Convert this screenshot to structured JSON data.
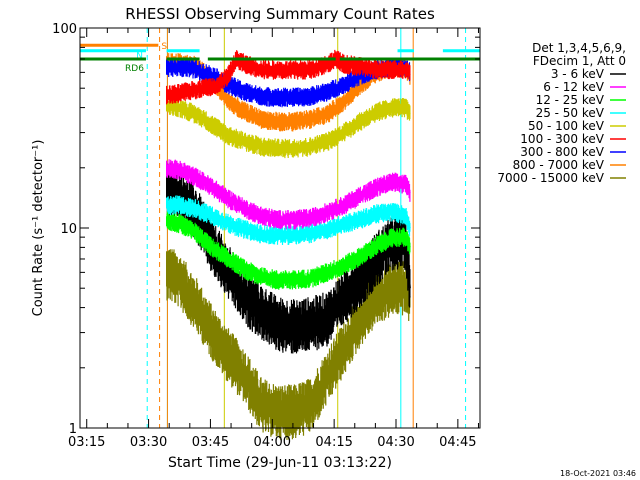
{
  "chart_data": {
    "type": "line",
    "title": "RHESSI Observing Summary Count Rates",
    "xlabel": "Start Time (29-Jun-11 03:13:22)",
    "ylabel": "Count Rate (s⁻¹ detector⁻¹)",
    "yscale": "log",
    "ylim": [
      1,
      100
    ],
    "xlim_minutes": [
      0,
      97
    ],
    "x_tick_labels": [
      "03:15",
      "03:30",
      "03:45",
      "04:00",
      "04:15",
      "04:30",
      "04:45"
    ],
    "x_tick_minutes": [
      1.63,
      16.63,
      31.63,
      46.63,
      61.63,
      76.63,
      91.63
    ],
    "y_tick_labels": [
      "1",
      "10",
      "100"
    ],
    "y_tick_values": [
      1,
      10,
      100
    ],
    "legend_header": [
      "Det 1,3,4,5,6,9,",
      "FDecim 1, Att 0"
    ],
    "legend_placement": "right",
    "series": [
      {
        "name": "3 - 6 keV",
        "color": "#000000",
        "points": [
          [
            21,
            16
          ],
          [
            24,
            15
          ],
          [
            28,
            12
          ],
          [
            32,
            8
          ],
          [
            36,
            6
          ],
          [
            40,
            4.5
          ],
          [
            44,
            3.8
          ],
          [
            48,
            3.3
          ],
          [
            52,
            3.2
          ],
          [
            56,
            3.3
          ],
          [
            60,
            3.5
          ],
          [
            64,
            4.5
          ],
          [
            68,
            5.5
          ],
          [
            72,
            7
          ],
          [
            76,
            8.5
          ],
          [
            79,
            8.5
          ],
          [
            80,
            5
          ]
        ]
      },
      {
        "name": "6 - 12 keV",
        "color": "#ff00ff",
        "points": [
          [
            21,
            20
          ],
          [
            24,
            19.5
          ],
          [
            28,
            18
          ],
          [
            32,
            16
          ],
          [
            36,
            14
          ],
          [
            40,
            12.5
          ],
          [
            44,
            11.5
          ],
          [
            48,
            11
          ],
          [
            52,
            11
          ],
          [
            56,
            11.2
          ],
          [
            60,
            12
          ],
          [
            64,
            13
          ],
          [
            68,
            14.5
          ],
          [
            72,
            16
          ],
          [
            76,
            17
          ],
          [
            79,
            16.5
          ],
          [
            80,
            15
          ]
        ]
      },
      {
        "name": "12 - 25 keV",
        "color": "#00ff00",
        "points": [
          [
            21,
            11
          ],
          [
            24,
            10.5
          ],
          [
            28,
            9.5
          ],
          [
            32,
            8
          ],
          [
            36,
            7
          ],
          [
            40,
            6.2
          ],
          [
            44,
            5.7
          ],
          [
            48,
            5.5
          ],
          [
            52,
            5.5
          ],
          [
            56,
            5.6
          ],
          [
            60,
            6
          ],
          [
            64,
            6.5
          ],
          [
            68,
            7.2
          ],
          [
            72,
            8.2
          ],
          [
            76,
            9
          ],
          [
            79,
            9
          ],
          [
            80,
            8
          ]
        ]
      },
      {
        "name": "25 - 50 keV",
        "color": "#00ffff",
        "points": [
          [
            21,
            13
          ],
          [
            24,
            13
          ],
          [
            28,
            12.5
          ],
          [
            32,
            11.5
          ],
          [
            36,
            10.5
          ],
          [
            40,
            9.8
          ],
          [
            44,
            9.3
          ],
          [
            48,
            9.2
          ],
          [
            52,
            9.2
          ],
          [
            56,
            9.4
          ],
          [
            60,
            9.8
          ],
          [
            64,
            10.5
          ],
          [
            68,
            11
          ],
          [
            72,
            11.8
          ],
          [
            76,
            12
          ],
          [
            79,
            11.5
          ],
          [
            80,
            10
          ]
        ]
      },
      {
        "name": "50 - 100 keV",
        "color": "#cccc00",
        "points": [
          [
            21,
            41
          ],
          [
            24,
            40
          ],
          [
            28,
            37
          ],
          [
            32,
            33
          ],
          [
            36,
            29
          ],
          [
            40,
            27
          ],
          [
            44,
            25.5
          ],
          [
            48,
            25
          ],
          [
            52,
            25
          ],
          [
            56,
            25.5
          ],
          [
            60,
            27
          ],
          [
            64,
            30
          ],
          [
            68,
            34
          ],
          [
            72,
            38
          ],
          [
            76,
            40
          ],
          [
            79,
            40
          ],
          [
            80,
            37
          ]
        ]
      },
      {
        "name": "100 - 300 keV",
        "color": "#ff0000",
        "points": [
          [
            21,
            46
          ],
          [
            24,
            47
          ],
          [
            28,
            49
          ],
          [
            32,
            51
          ],
          [
            34,
            53
          ],
          [
            36,
            58
          ],
          [
            38,
            70
          ],
          [
            40,
            66
          ],
          [
            44,
            62
          ],
          [
            48,
            61.5
          ],
          [
            52,
            61.5
          ],
          [
            56,
            62
          ],
          [
            60,
            66
          ],
          [
            62,
            70
          ],
          [
            64,
            66
          ],
          [
            68,
            64
          ],
          [
            72,
            62
          ],
          [
            76,
            62
          ],
          [
            79,
            62
          ],
          [
            80,
            60
          ]
        ]
      },
      {
        "name": "300 - 800 keV",
        "color": "#0000ff",
        "points": [
          [
            21,
            63
          ],
          [
            24,
            64
          ],
          [
            28,
            62
          ],
          [
            32,
            58
          ],
          [
            36,
            52
          ],
          [
            40,
            48
          ],
          [
            44,
            45.5
          ],
          [
            48,
            45
          ],
          [
            52,
            45
          ],
          [
            56,
            45.5
          ],
          [
            60,
            48
          ],
          [
            64,
            52
          ],
          [
            68,
            58
          ],
          [
            72,
            62
          ],
          [
            76,
            64
          ],
          [
            79,
            63
          ],
          [
            80,
            60
          ]
        ]
      },
      {
        "name": "800 - 7000 keV",
        "color": "#ff8000",
        "points": [
          [
            21,
            67
          ],
          [
            24,
            67
          ],
          [
            28,
            65
          ],
          [
            32,
            55
          ],
          [
            36,
            43
          ],
          [
            40,
            38
          ],
          [
            44,
            35
          ],
          [
            48,
            34
          ],
          [
            52,
            34
          ],
          [
            56,
            35
          ],
          [
            60,
            37
          ],
          [
            64,
            43
          ],
          [
            68,
            52
          ],
          [
            72,
            60
          ],
          [
            76,
            63
          ],
          [
            79,
            63
          ],
          [
            80,
            58
          ]
        ]
      },
      {
        "name": "7000 - 15000 keV",
        "color": "#808000",
        "points": [
          [
            21,
            6
          ],
          [
            24,
            5.5
          ],
          [
            28,
            4.2
          ],
          [
            32,
            3
          ],
          [
            36,
            2.3
          ],
          [
            40,
            1.8
          ],
          [
            44,
            1.3
          ],
          [
            48,
            1.2
          ],
          [
            52,
            1.2
          ],
          [
            56,
            1.3
          ],
          [
            60,
            1.8
          ],
          [
            64,
            2.5
          ],
          [
            68,
            3.5
          ],
          [
            72,
            4.5
          ],
          [
            76,
            5
          ],
          [
            79,
            5
          ],
          [
            80,
            4.5
          ]
        ]
      }
    ],
    "state_bars": [
      {
        "label": "S",
        "color": "#ff8000",
        "value": 82,
        "segments": [
          [
            0,
            19
          ]
        ]
      },
      {
        "label": "N",
        "color": "#00ffff",
        "value": 77,
        "segments": [
          [
            0,
            16
          ],
          [
            21,
            29
          ],
          [
            77,
            81
          ],
          [
            88,
            97
          ]
        ]
      },
      {
        "label": "RD6",
        "color": "#008000",
        "value": 70,
        "segments": [
          [
            0,
            16
          ],
          [
            21,
            29
          ],
          [
            31,
            62
          ],
          [
            63,
            97
          ]
        ]
      }
    ],
    "vertical_lines": [
      {
        "minute": 16.3,
        "color": "#00ffff",
        "style": "dashed"
      },
      {
        "minute": 19.3,
        "color": "#ff8000",
        "style": "dashed"
      },
      {
        "minute": 21.2,
        "color": "#00ffff",
        "style": "solid"
      },
      {
        "minute": 21.2,
        "color": "#ff8000",
        "style": "solid"
      },
      {
        "minute": 35.0,
        "color": "#cccc00",
        "style": "solid"
      },
      {
        "minute": 62.5,
        "color": "#cccc00",
        "style": "solid"
      },
      {
        "minute": 77.8,
        "color": "#00ffff",
        "style": "solid"
      },
      {
        "minute": 80.8,
        "color": "#ff8000",
        "style": "solid"
      },
      {
        "minute": 93.5,
        "color": "#00ffff",
        "style": "dashed"
      }
    ]
  },
  "footer_date": "18-Oct-2021 03:46"
}
